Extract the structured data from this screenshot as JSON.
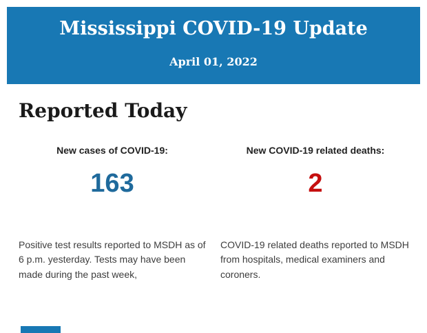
{
  "banner": {
    "title": "Mississippi COVID-19 Update",
    "date": "April 01, 2022",
    "bg_color": "#1878b4",
    "text_color": "#ffffff"
  },
  "section": {
    "heading": "Reported Today"
  },
  "stats": [
    {
      "label": "New cases of COVID-19:",
      "value": "163",
      "value_color": "#1f6a9c",
      "description": "Positive test results reported to MSDH as of 6 p.m. yesterday. Tests may have been made during the past week,"
    },
    {
      "label": "New COVID-19 related deaths:",
      "value": "2",
      "value_color": "#c50f0f",
      "description": "COVID-19 related deaths reported to MSDH from hospitals, medical examiners and coroners."
    }
  ],
  "colors": {
    "header_bg": "#1878b4",
    "cases_blue": "#1f6a9c",
    "deaths_red": "#c50f0f",
    "body_text": "#3d3d3d"
  }
}
